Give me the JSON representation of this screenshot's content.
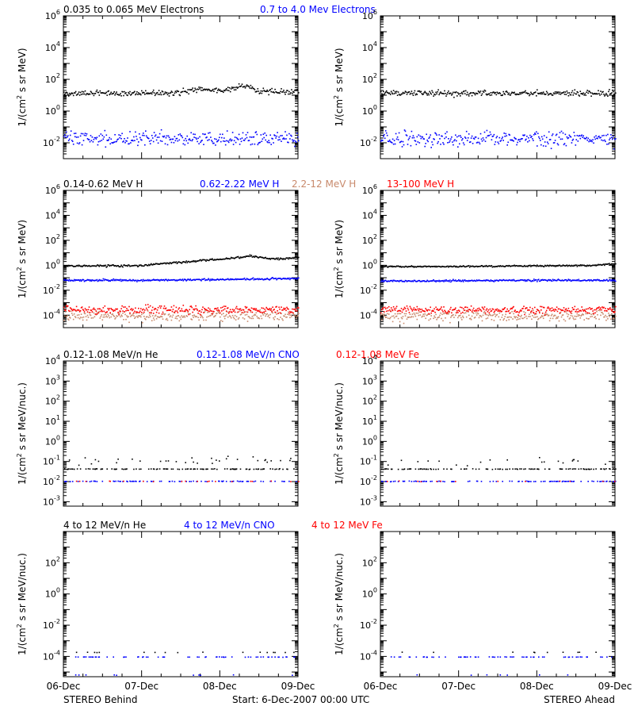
{
  "colors": {
    "black": "#000000",
    "blue": "#0000ff",
    "tan": "#c8896b",
    "red": "#ff0000"
  },
  "x_ticks": [
    "06-Dec",
    "07-Dec",
    "08-Dec",
    "09-Dec"
  ],
  "footer": {
    "left": "STEREO Behind",
    "center": "Start:  6-Dec-2007 00:00 UTC",
    "right": "STEREO Ahead"
  },
  "chart_data": [
    {
      "type": "scatter",
      "row": 1,
      "ylabel_base": "1/(cm",
      "ylabel_sup": "2",
      "ylabel_rest": " s sr MeV)",
      "ylog": true,
      "ylim": [
        0.001,
        1000000
      ],
      "yticks": [
        {
          "b": "10",
          "e": "6"
        },
        {
          "b": "10",
          "e": "4"
        },
        {
          "b": "10",
          "e": "2"
        },
        {
          "b": "10",
          "e": "0"
        },
        {
          "b": "10",
          "e": "-2"
        }
      ],
      "ytick_vals": [
        1000000,
        10000,
        100,
        1,
        0.01
      ],
      "legend": [
        {
          "name": "0.035 to 0.065 MeV Electrons",
          "color": "black"
        },
        {
          "name": "0.7 to 4.0 Mev Electrons",
          "color": "blue"
        }
      ],
      "panels": {
        "behind": {
          "series": [
            {
              "color": "black",
              "x": [
                0,
                0.5,
                1.0,
                1.5,
                1.7,
                2.0,
                2.3,
                2.5,
                3.0
              ],
              "y": [
                14,
                15,
                15,
                16,
                28,
                20,
                45,
                18,
                18
              ],
              "scatter": 0.35
            },
            {
              "color": "blue",
              "x": [
                0,
                1.0,
                2.0,
                3.0
              ],
              "y": [
                0.02,
                0.019,
                0.019,
                0.02
              ],
              "scatter": 0.9
            }
          ]
        },
        "ahead": {
          "series": [
            {
              "color": "black",
              "x": [
                0,
                1.0,
                2.0,
                3.0
              ],
              "y": [
                14,
                15,
                14,
                15
              ],
              "scatter": 0.35
            },
            {
              "color": "blue",
              "x": [
                0,
                1.0,
                2.0,
                3.0
              ],
              "y": [
                0.02,
                0.019,
                0.02,
                0.019
              ],
              "scatter": 0.9
            }
          ]
        }
      }
    },
    {
      "type": "scatter",
      "row": 2,
      "ylabel_base": "1/(cm",
      "ylabel_sup": "2",
      "ylabel_rest": " s sr MeV)",
      "ylog": true,
      "ylim": [
        1e-05,
        1000000
      ],
      "yticks": [
        {
          "b": "10",
          "e": "6"
        },
        {
          "b": "10",
          "e": "4"
        },
        {
          "b": "10",
          "e": "2"
        },
        {
          "b": "10",
          "e": "0"
        },
        {
          "b": "10",
          "e": "-2"
        },
        {
          "b": "10",
          "e": "-4"
        }
      ],
      "ytick_vals": [
        1000000,
        10000,
        100,
        1,
        0.01,
        0.0001
      ],
      "legend": [
        {
          "name": "0.14-0.62 MeV H",
          "color": "black"
        },
        {
          "name": "0.62-2.22 MeV H",
          "color": "blue"
        },
        {
          "name": "2.2-12 MeV H",
          "color": "tan"
        },
        {
          "name": "13-100 MeV H",
          "color": "red"
        }
      ],
      "panels": {
        "behind": {
          "series": [
            {
              "color": "black",
              "x": [
                0,
                0.7,
                1.0,
                1.5,
                2.0,
                2.4,
                2.7,
                3.0
              ],
              "y": [
                1.0,
                1.0,
                1.1,
                2.0,
                3.5,
                6.0,
                3.5,
                4.5
              ],
              "scatter": 0.15
            },
            {
              "color": "blue",
              "x": [
                0,
                1.0,
                2.0,
                3.0
              ],
              "y": [
                0.07,
                0.07,
                0.08,
                0.1
              ],
              "scatter": 0.15
            },
            {
              "color": "tan",
              "x": [
                0,
                3.0
              ],
              "y": [
                0.0001,
                0.0001
              ],
              "scatter": 0.8
            },
            {
              "color": "red",
              "x": [
                0,
                3.0
              ],
              "y": [
                0.0003,
                0.0003
              ],
              "scatter": 0.6
            }
          ]
        },
        "ahead": {
          "series": [
            {
              "color": "black",
              "x": [
                0,
                1.0,
                2.0,
                2.7,
                3.0
              ],
              "y": [
                0.9,
                0.9,
                1.0,
                1.1,
                1.5
              ],
              "scatter": 0.12
            },
            {
              "color": "blue",
              "x": [
                0,
                1.0,
                2.0,
                3.0
              ],
              "y": [
                0.06,
                0.065,
                0.07,
                0.07
              ],
              "scatter": 0.15
            },
            {
              "color": "tan",
              "x": [
                0,
                3.0
              ],
              "y": [
                0.0001,
                0.0001
              ],
              "scatter": 0.8
            },
            {
              "color": "red",
              "x": [
                0,
                3.0
              ],
              "y": [
                0.0003,
                0.0003
              ],
              "scatter": 0.6
            }
          ]
        }
      }
    },
    {
      "type": "scatter",
      "row": 3,
      "ylabel_base": "1/(cm",
      "ylabel_sup": "2",
      "ylabel_rest": " s sr MeV/nuc.)",
      "ylog": true,
      "ylim": [
        0.0006,
        10000
      ],
      "yticks": [
        {
          "b": "10",
          "e": "4"
        },
        {
          "b": "10",
          "e": "3"
        },
        {
          "b": "10",
          "e": "2"
        },
        {
          "b": "10",
          "e": "1"
        },
        {
          "b": "10",
          "e": "0"
        },
        {
          "b": "10",
          "e": "-1"
        },
        {
          "b": "10",
          "e": "-2"
        },
        {
          "b": "10",
          "e": "-3"
        }
      ],
      "ytick_vals": [
        10000,
        1000,
        100,
        10,
        1,
        0.1,
        0.01,
        0.001
      ],
      "legend": [
        {
          "name": "0.12-1.08 MeV/n He",
          "color": "black"
        },
        {
          "name": "0.12-1.08 MeV/n CNO",
          "color": "blue"
        },
        {
          "name": "0.12-1.08 MeV Fe",
          "color": "red"
        }
      ],
      "panels": {
        "behind": {
          "series": [
            {
              "color": "black",
              "x": [
                0,
                3.0
              ],
              "y": [
                0.045,
                0.045
              ],
              "scatter": 0.03,
              "sparse": 0.35
            },
            {
              "color": "black",
              "x": [
                0,
                3.0
              ],
              "y": [
                0.1,
                0.14
              ],
              "scatter": 0.35,
              "sparse": 0.1
            },
            {
              "color": "blue",
              "x": [
                0,
                3.0
              ],
              "y": [
                0.011,
                0.011
              ],
              "scatter": 0.03,
              "sparse": 0.3
            },
            {
              "color": "red",
              "x": [
                0,
                3.0
              ],
              "y": [
                0.011,
                0.011
              ],
              "scatter": 0.03,
              "sparse": 0.06
            }
          ]
        },
        "ahead": {
          "series": [
            {
              "color": "black",
              "x": [
                0,
                3.0
              ],
              "y": [
                0.045,
                0.045
              ],
              "scatter": 0.03,
              "sparse": 0.35
            },
            {
              "color": "black",
              "x": [
                0,
                3.0
              ],
              "y": [
                0.1,
                0.12
              ],
              "scatter": 0.35,
              "sparse": 0.06
            },
            {
              "color": "blue",
              "x": [
                0,
                3.0
              ],
              "y": [
                0.011,
                0.011
              ],
              "scatter": 0.03,
              "sparse": 0.3
            },
            {
              "color": "red",
              "x": [
                0,
                3.0
              ],
              "y": [
                0.011,
                0.011
              ],
              "scatter": 0.03,
              "sparse": 0.04
            }
          ]
        }
      }
    },
    {
      "type": "scatter",
      "row": 4,
      "ylabel_base": "1/(cm",
      "ylabel_sup": "2",
      "ylabel_rest": " s sr MeV/nuc.)",
      "ylog": true,
      "ylim": [
        5e-06,
        10000
      ],
      "yticks": [
        {
          "b": "10",
          "e": "2"
        },
        {
          "b": "10",
          "e": "0"
        },
        {
          "b": "10",
          "e": "-2"
        },
        {
          "b": "10",
          "e": "-4"
        }
      ],
      "ytick_vals": [
        100,
        1,
        0.01,
        0.0001
      ],
      "legend": [
        {
          "name": "4 to 12 MeV/n He",
          "color": "black"
        },
        {
          "name": "4 to 12 MeV/n CNO",
          "color": "blue"
        },
        {
          "name": "4 to 12 MeV Fe",
          "color": "red"
        }
      ],
      "panels": {
        "behind": {
          "series": [
            {
              "color": "blue",
              "x": [
                0,
                3.0
              ],
              "y": [
                0.0001,
                0.0001
              ],
              "scatter": 0.02,
              "sparse": 0.22
            },
            {
              "color": "black",
              "x": [
                0,
                3.0
              ],
              "y": [
                0.0002,
                0.0002
              ],
              "scatter": 0.03,
              "sparse": 0.05
            },
            {
              "color": "blue",
              "x": [
                0,
                3.0
              ],
              "y": [
                7e-06,
                7e-06
              ],
              "scatter": 0.03,
              "sparse": 0.04
            }
          ]
        },
        "ahead": {
          "series": [
            {
              "color": "blue",
              "x": [
                0,
                3.0
              ],
              "y": [
                0.0001,
                0.0001
              ],
              "scatter": 0.02,
              "sparse": 0.22
            },
            {
              "color": "black",
              "x": [
                0,
                3.0
              ],
              "y": [
                0.0002,
                0.0002
              ],
              "scatter": 0.03,
              "sparse": 0.04
            },
            {
              "color": "blue",
              "x": [
                0,
                3.0
              ],
              "y": [
                7e-06,
                7e-06
              ],
              "scatter": 0.03,
              "sparse": 0.03
            }
          ]
        }
      }
    }
  ]
}
